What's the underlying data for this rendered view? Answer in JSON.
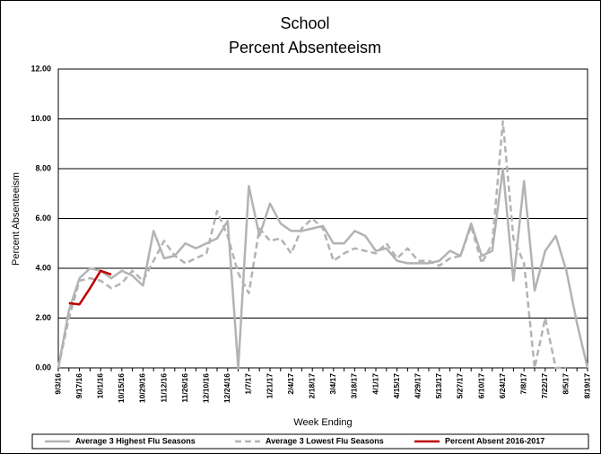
{
  "chart_data": {
    "type": "line",
    "title": "School",
    "subtitle": "Percent Absenteeism",
    "x_label": "Week Ending",
    "y_label": "Percent Absenteeism",
    "categories": [
      "9/3/16",
      null,
      "9/17/16",
      null,
      "10/1/16",
      null,
      "10/15/16",
      null,
      "10/29/16",
      null,
      "11/12/16",
      null,
      "11/26/16",
      null,
      "12/10/16",
      null,
      "12/24/16",
      null,
      "1/7/17",
      null,
      "1/21/17",
      null,
      "2/4/17",
      null,
      "2/18/17",
      null,
      "3/4/17",
      null,
      "3/18/17",
      null,
      "4/1/17",
      null,
      "4/15/17",
      null,
      "4/29/17",
      null,
      "5/13/17",
      null,
      "5/27/17",
      null,
      "6/10/17",
      null,
      "6/24/17",
      null,
      "7/8/17",
      null,
      "7/22/17",
      null,
      "8/5/17",
      null,
      "8/19/17"
    ],
    "series": [
      {
        "name": "Average 3 Highest Flu Seasons",
        "color": "#b3b3b3",
        "dashed": false,
        "values": [
          0,
          2.3,
          3.6,
          4.0,
          3.9,
          3.6,
          3.9,
          3.7,
          3.3,
          5.5,
          4.4,
          4.5,
          5.0,
          4.8,
          5.0,
          5.2,
          5.9,
          0,
          7.3,
          5.3,
          6.6,
          5.8,
          5.5,
          5.5,
          5.6,
          5.7,
          5.0,
          5.0,
          5.5,
          5.3,
          4.7,
          4.8,
          4.3,
          4.2,
          4.2,
          4.2,
          4.3,
          4.7,
          4.5,
          5.8,
          4.5,
          4.7,
          8.0,
          3.5,
          7.5,
          3.1,
          4.7,
          5.3,
          3.9,
          1.8,
          0
        ]
      },
      {
        "name": "Average 3 Lowest Flu Seasons",
        "color": "#b3b3b3",
        "dashed": true,
        "values": [
          0,
          2.0,
          3.5,
          3.6,
          3.5,
          3.2,
          3.4,
          3.9,
          3.5,
          4.3,
          5.1,
          4.5,
          4.2,
          4.4,
          4.6,
          6.3,
          5.3,
          3.8,
          3.0,
          5.6,
          5.1,
          5.2,
          4.6,
          5.6,
          6.0,
          5.6,
          4.3,
          4.6,
          4.8,
          4.7,
          4.6,
          5.0,
          4.4,
          4.8,
          4.3,
          4.3,
          4.1,
          4.4,
          4.5,
          5.7,
          4.2,
          5.0,
          9.9,
          5.2,
          4.2,
          0,
          2.0,
          0,
          0,
          null,
          null
        ]
      },
      {
        "name": "Percent Absent 2016-2017",
        "color": "#c00000",
        "dashed": false,
        "values": [
          null,
          2.6,
          2.55,
          3.2,
          3.9,
          3.75,
          null,
          null,
          null,
          null,
          null,
          null,
          null,
          null,
          null,
          null,
          null,
          null,
          null,
          null,
          null,
          null,
          null,
          null,
          null,
          null,
          null,
          null,
          null,
          null,
          null,
          null,
          null,
          null,
          null,
          null,
          null,
          null,
          null,
          null,
          null,
          null,
          null,
          null,
          null,
          null,
          null,
          null,
          null,
          null,
          null
        ]
      }
    ],
    "ylim": [
      0,
      12
    ],
    "yticks": [
      {
        "value": 0,
        "label": "0.00"
      },
      {
        "value": 2,
        "label": "2.00"
      },
      {
        "value": 4,
        "label": "4.00"
      },
      {
        "value": 6,
        "label": "6.00"
      },
      {
        "value": 8,
        "label": "8.00"
      },
      {
        "value": 10,
        "label": "10.00"
      },
      {
        "value": 12,
        "label": "12.00"
      }
    ],
    "grid": true
  }
}
